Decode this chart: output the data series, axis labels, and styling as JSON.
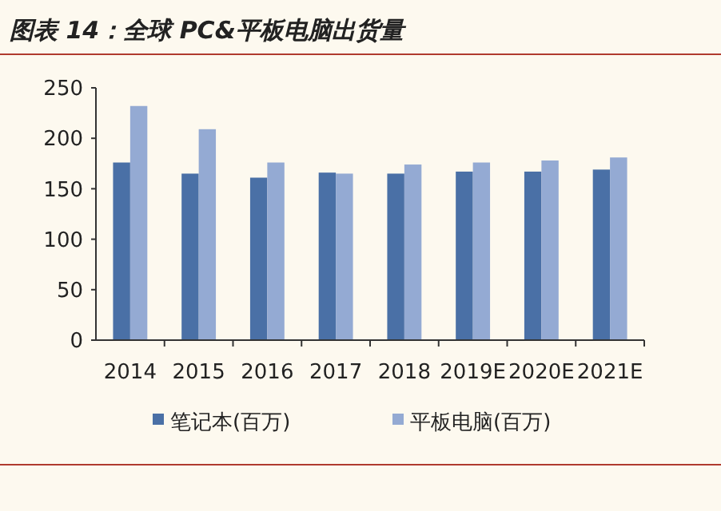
{
  "chart_data": {
    "type": "bar",
    "title": "图表 14：全球 PC&平板电脑出货量",
    "categories": [
      "2014",
      "2015",
      "2016",
      "2017",
      "2018",
      "2019E",
      "2020E",
      "2021E"
    ],
    "series": [
      {
        "name": "笔记本(百万)",
        "color": "#4a70a6",
        "values": [
          176,
          165,
          161,
          166,
          165,
          167,
          167,
          169
        ]
      },
      {
        "name": "平板电脑(百万)",
        "color": "#94aad3",
        "values": [
          232,
          209,
          176,
          165,
          174,
          176,
          178,
          181
        ]
      }
    ],
    "ylim": [
      0,
      250
    ],
    "yticks": [
      0,
      50,
      100,
      150,
      200,
      250
    ],
    "grid": false,
    "legend": "bottom"
  }
}
